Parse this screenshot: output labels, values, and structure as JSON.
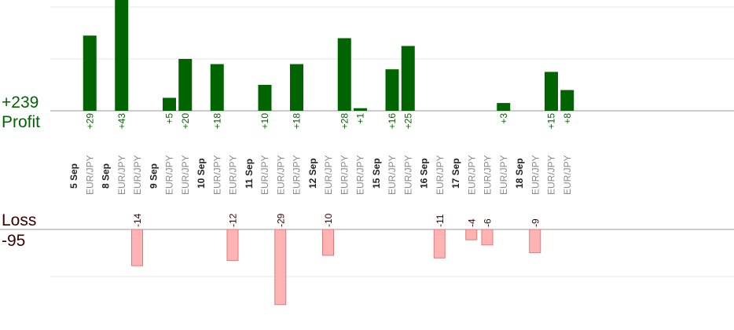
{
  "summary": {
    "profit_total": "+239",
    "profit_label": "Profit",
    "loss_label": "Loss",
    "loss_total": "-95"
  },
  "colors": {
    "profit_bar": "#006400",
    "profit_text": "#006400",
    "loss_bar": "#ffb3b3",
    "loss_bar_border": "#e07a7a",
    "loss_text": "#3a0000",
    "instrument_text": "#8a8a8a",
    "date_text": "#222222",
    "gridline": "#e6e6e6",
    "axis": "#999999"
  },
  "chart_data": {
    "type": "bar",
    "ylabel_profit": "Profit",
    "ylabel_loss": "Loss",
    "grid": true,
    "date_groups": [
      {
        "date": "5 Sep",
        "trades": [
          {
            "instrument": "EUR/JPY",
            "value": 29
          }
        ]
      },
      {
        "date": "8 Sep",
        "trades": [
          {
            "instrument": "EUR/JPY",
            "value": 43
          },
          {
            "instrument": "EUR/JPY",
            "value": -14
          }
        ]
      },
      {
        "date": "9 Sep",
        "trades": [
          {
            "instrument": "EUR/JPY",
            "value": 5
          },
          {
            "instrument": "EUR/JPY",
            "value": 20
          }
        ]
      },
      {
        "date": "10 Sep",
        "trades": [
          {
            "instrument": "EUR/JPY",
            "value": 18
          },
          {
            "instrument": "EUR/JPY",
            "value": -12
          }
        ]
      },
      {
        "date": "11 Sep",
        "trades": [
          {
            "instrument": "EUR/JPY",
            "value": 10
          },
          {
            "instrument": "EUR/JPY",
            "value": -29
          },
          {
            "instrument": "EUR/JPY",
            "value": 18
          }
        ]
      },
      {
        "date": "12 Sep",
        "trades": [
          {
            "instrument": "EUR/JPY",
            "value": -10
          },
          {
            "instrument": "EUR/JPY",
            "value": 28
          },
          {
            "instrument": "EUR/JPY",
            "value": 1
          }
        ]
      },
      {
        "date": "15 Sep",
        "trades": [
          {
            "instrument": "EUR/JPY",
            "value": 16
          },
          {
            "instrument": "EUR/JPY",
            "value": 25
          }
        ]
      },
      {
        "date": "16 Sep",
        "trades": [
          {
            "instrument": "EUR/JPY",
            "value": -11
          }
        ]
      },
      {
        "date": "17 Sep",
        "trades": [
          {
            "instrument": "EUR/JPY",
            "value": -4
          },
          {
            "instrument": "EUR/JPY",
            "value": -6
          },
          {
            "instrument": "EUR/JPY",
            "value": 3
          }
        ]
      },
      {
        "date": "18 Sep",
        "trades": [
          {
            "instrument": "EUR/JPY",
            "value": -9
          },
          {
            "instrument": "EUR/JPY",
            "value": 15
          },
          {
            "instrument": "EUR/JPY",
            "value": 8
          }
        ]
      }
    ]
  }
}
